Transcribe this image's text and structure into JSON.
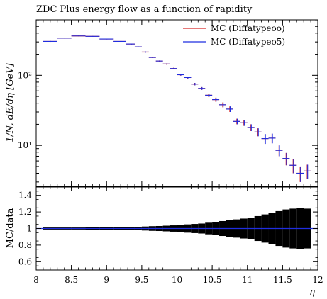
{
  "chart_data": {
    "type": "line",
    "title": "ZDC Plus energy flow as a function of rapidity",
    "xlabel": "η",
    "ylabel": "1/N, dE/dη [GeV]",
    "ratio_ylabel": "MC/data",
    "xlim": [
      8,
      12
    ],
    "ylim": [
      2.6,
      620
    ],
    "y_scale": "log",
    "ratio_ylim": [
      0.5,
      1.5
    ],
    "grid": false,
    "legend_position": "top-right",
    "x_ticks": [
      "8",
      "8.5",
      "9",
      "9.5",
      "10",
      "10.5",
      "11",
      "11.5",
      "12"
    ],
    "y_ticks": [
      {
        "label": "10¹",
        "value": 10
      },
      {
        "label": "10²",
        "value": 100
      }
    ],
    "ratio_ticks": [
      "0.6",
      "0.8",
      "1",
      "1.2",
      "1.4"
    ],
    "colors": {
      "mc00": "#d62728",
      "mc05": "#1f2de0",
      "band": "#000000",
      "ref": "#1f2de0"
    },
    "series": [
      {
        "name": "MC (Diffatypeoo)",
        "color": "#d62728"
      },
      {
        "name": "MC (Diffatypeo5)",
        "color": "#1f2de0"
      }
    ],
    "points": [
      {
        "x": 8.2,
        "y": 305,
        "err": 4,
        "ratio_err": 0.012
      },
      {
        "x": 8.4,
        "y": 340,
        "err": 4,
        "ratio_err": 0.012
      },
      {
        "x": 8.6,
        "y": 365,
        "err": 4,
        "ratio_err": 0.012
      },
      {
        "x": 8.8,
        "y": 360,
        "err": 4,
        "ratio_err": 0.013
      },
      {
        "x": 9.0,
        "y": 330,
        "err": 4,
        "ratio_err": 0.014
      },
      {
        "x": 9.2,
        "y": 305,
        "err": 4,
        "ratio_err": 0.016
      },
      {
        "x": 9.35,
        "y": 280,
        "err": 4,
        "ratio_err": 0.018
      },
      {
        "x": 9.45,
        "y": 255,
        "err": 4,
        "ratio_err": 0.02
      },
      {
        "x": 9.55,
        "y": 215,
        "err": 4,
        "ratio_err": 0.024
      },
      {
        "x": 9.65,
        "y": 180,
        "err": 3,
        "ratio_err": 0.028
      },
      {
        "x": 9.75,
        "y": 160,
        "err": 3,
        "ratio_err": 0.03
      },
      {
        "x": 9.85,
        "y": 145,
        "err": 3,
        "ratio_err": 0.034
      },
      {
        "x": 9.95,
        "y": 125,
        "err": 3,
        "ratio_err": 0.038
      },
      {
        "x": 10.05,
        "y": 102,
        "err": 3,
        "ratio_err": 0.045
      },
      {
        "x": 10.15,
        "y": 93,
        "err": 3,
        "ratio_err": 0.05
      },
      {
        "x": 10.25,
        "y": 75,
        "err": 3,
        "ratio_err": 0.055
      },
      {
        "x": 10.35,
        "y": 65,
        "err": 3,
        "ratio_err": 0.06
      },
      {
        "x": 10.45,
        "y": 52,
        "err": 3,
        "ratio_err": 0.07
      },
      {
        "x": 10.55,
        "y": 45,
        "err": 3,
        "ratio_err": 0.08
      },
      {
        "x": 10.65,
        "y": 38,
        "err": 3,
        "ratio_err": 0.09
      },
      {
        "x": 10.75,
        "y": 33,
        "err": 3,
        "ratio_err": 0.1
      },
      {
        "x": 10.85,
        "y": 22,
        "err": 2,
        "ratio_err": 0.11
      },
      {
        "x": 10.95,
        "y": 21,
        "err": 2,
        "ratio_err": 0.12
      },
      {
        "x": 11.05,
        "y": 18,
        "err": 2,
        "ratio_err": 0.13
      },
      {
        "x": 11.15,
        "y": 15.5,
        "err": 2,
        "ratio_err": 0.15
      },
      {
        "x": 11.25,
        "y": 12.5,
        "err": 2,
        "ratio_err": 0.17
      },
      {
        "x": 11.35,
        "y": 12.7,
        "err": 2,
        "ratio_err": 0.19
      },
      {
        "x": 11.45,
        "y": 8.5,
        "err": 1.5,
        "ratio_err": 0.21
      },
      {
        "x": 11.55,
        "y": 6.5,
        "err": 1.3,
        "ratio_err": 0.23
      },
      {
        "x": 11.65,
        "y": 5.2,
        "err": 1.2,
        "ratio_err": 0.24
      },
      {
        "x": 11.75,
        "y": 4.0,
        "err": 1.0,
        "ratio_err": 0.25
      },
      {
        "x": 11.85,
        "y": 4.3,
        "err": 1.0,
        "ratio_err": 0.24
      }
    ]
  }
}
